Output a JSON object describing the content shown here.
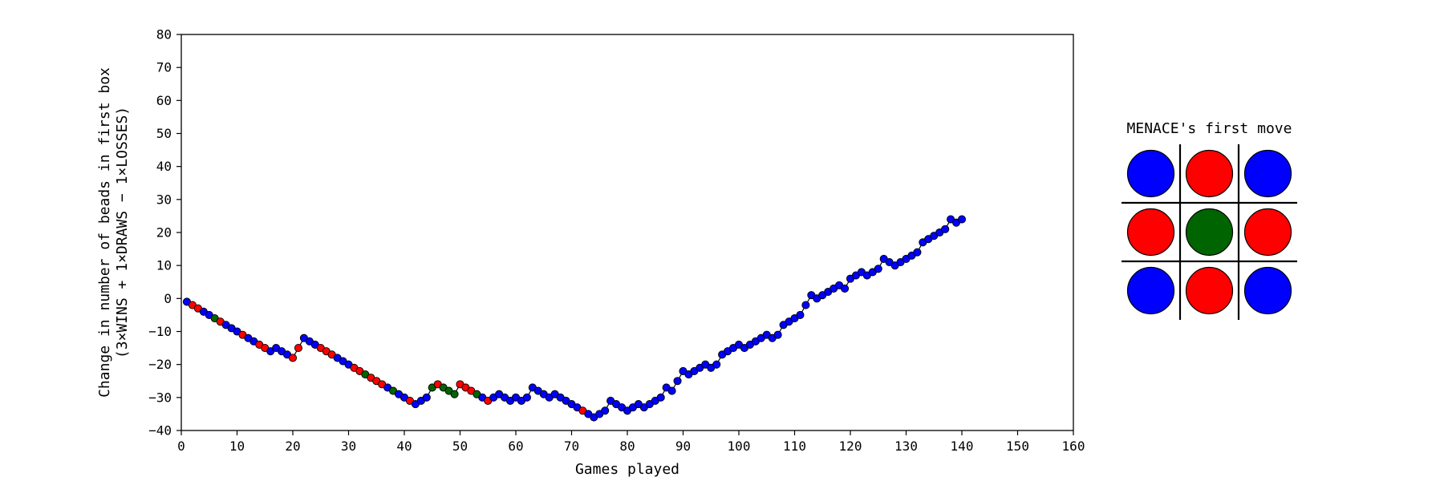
{
  "chart_data": {
    "type": "scatter",
    "xlabel": "Games played",
    "ylabel": "Change in number of beads in first box",
    "ylabel_line2": "(3×WINS + 1×DRAWS − 1×LOSSES)",
    "xlim": [
      0,
      160
    ],
    "ylim": [
      -40,
      80
    ],
    "xticks": [
      0,
      10,
      20,
      30,
      40,
      50,
      60,
      70,
      80,
      90,
      100,
      110,
      120,
      130,
      140,
      150,
      160
    ],
    "yticks": [
      -40,
      -30,
      -20,
      -10,
      0,
      10,
      20,
      30,
      40,
      50,
      60,
      70,
      80
    ],
    "grid": false,
    "line_color": "#000000",
    "colors": {
      "b": "#0000ff",
      "r": "#ff0000",
      "g": "#006400"
    },
    "color_names": {
      "b": "blue",
      "r": "red",
      "g": "green"
    },
    "points": [
      [
        1,
        -1,
        "b"
      ],
      [
        2,
        -2,
        "r"
      ],
      [
        3,
        -3,
        "r"
      ],
      [
        4,
        -4,
        "b"
      ],
      [
        5,
        -5,
        "b"
      ],
      [
        6,
        -6,
        "g"
      ],
      [
        7,
        -7,
        "r"
      ],
      [
        8,
        -8,
        "b"
      ],
      [
        9,
        -9,
        "b"
      ],
      [
        10,
        -10,
        "b"
      ],
      [
        11,
        -11,
        "r"
      ],
      [
        12,
        -12,
        "b"
      ],
      [
        13,
        -13,
        "b"
      ],
      [
        14,
        -14,
        "r"
      ],
      [
        15,
        -15,
        "r"
      ],
      [
        16,
        -16,
        "b"
      ],
      [
        17,
        -15,
        "b"
      ],
      [
        18,
        -16,
        "b"
      ],
      [
        19,
        -17,
        "b"
      ],
      [
        20,
        -18,
        "r"
      ],
      [
        21,
        -15,
        "r"
      ],
      [
        22,
        -12,
        "b"
      ],
      [
        23,
        -13,
        "b"
      ],
      [
        24,
        -14,
        "b"
      ],
      [
        25,
        -15,
        "r"
      ],
      [
        26,
        -16,
        "r"
      ],
      [
        27,
        -17,
        "r"
      ],
      [
        28,
        -18,
        "b"
      ],
      [
        29,
        -19,
        "b"
      ],
      [
        30,
        -20,
        "b"
      ],
      [
        31,
        -21,
        "r"
      ],
      [
        32,
        -22,
        "r"
      ],
      [
        33,
        -23,
        "g"
      ],
      [
        34,
        -24,
        "r"
      ],
      [
        35,
        -25,
        "r"
      ],
      [
        36,
        -26,
        "r"
      ],
      [
        37,
        -27,
        "b"
      ],
      [
        38,
        -28,
        "g"
      ],
      [
        39,
        -29,
        "b"
      ],
      [
        40,
        -30,
        "b"
      ],
      [
        41,
        -31,
        "r"
      ],
      [
        42,
        -32,
        "b"
      ],
      [
        43,
        -31,
        "b"
      ],
      [
        44,
        -30,
        "b"
      ],
      [
        45,
        -27,
        "g"
      ],
      [
        46,
        -26,
        "r"
      ],
      [
        47,
        -27,
        "g"
      ],
      [
        48,
        -28,
        "g"
      ],
      [
        49,
        -29,
        "g"
      ],
      [
        50,
        -26,
        "r"
      ],
      [
        51,
        -27,
        "r"
      ],
      [
        52,
        -28,
        "r"
      ],
      [
        53,
        -29,
        "g"
      ],
      [
        54,
        -30,
        "b"
      ],
      [
        55,
        -31,
        "r"
      ],
      [
        56,
        -30,
        "b"
      ],
      [
        57,
        -29,
        "b"
      ],
      [
        58,
        -30,
        "b"
      ],
      [
        59,
        -31,
        "b"
      ],
      [
        60,
        -30,
        "b"
      ],
      [
        61,
        -31,
        "b"
      ],
      [
        62,
        -30,
        "b"
      ],
      [
        63,
        -27,
        "b"
      ],
      [
        64,
        -28,
        "b"
      ],
      [
        65,
        -29,
        "b"
      ],
      [
        66,
        -30,
        "b"
      ],
      [
        67,
        -29,
        "b"
      ],
      [
        68,
        -30,
        "b"
      ],
      [
        69,
        -31,
        "b"
      ],
      [
        70,
        -32,
        "b"
      ],
      [
        71,
        -33,
        "b"
      ],
      [
        72,
        -34,
        "r"
      ],
      [
        73,
        -35,
        "b"
      ],
      [
        74,
        -36,
        "b"
      ],
      [
        75,
        -35,
        "b"
      ],
      [
        76,
        -34,
        "b"
      ],
      [
        77,
        -31,
        "b"
      ],
      [
        78,
        -32,
        "b"
      ],
      [
        79,
        -33,
        "b"
      ],
      [
        80,
        -34,
        "b"
      ],
      [
        81,
        -33,
        "b"
      ],
      [
        82,
        -32,
        "b"
      ],
      [
        83,
        -33,
        "b"
      ],
      [
        84,
        -32,
        "b"
      ],
      [
        85,
        -31,
        "b"
      ],
      [
        86,
        -30,
        "b"
      ],
      [
        87,
        -27,
        "b"
      ],
      [
        88,
        -28,
        "b"
      ],
      [
        89,
        -25,
        "b"
      ],
      [
        90,
        -22,
        "b"
      ],
      [
        91,
        -23,
        "b"
      ],
      [
        92,
        -22,
        "b"
      ],
      [
        93,
        -21,
        "b"
      ],
      [
        94,
        -20,
        "b"
      ],
      [
        95,
        -21,
        "b"
      ],
      [
        96,
        -20,
        "b"
      ],
      [
        97,
        -17,
        "b"
      ],
      [
        98,
        -16,
        "b"
      ],
      [
        99,
        -15,
        "b"
      ],
      [
        100,
        -14,
        "b"
      ],
      [
        101,
        -15,
        "b"
      ],
      [
        102,
        -14,
        "b"
      ],
      [
        103,
        -13,
        "b"
      ],
      [
        104,
        -12,
        "b"
      ],
      [
        105,
        -11,
        "b"
      ],
      [
        106,
        -12,
        "b"
      ],
      [
        107,
        -11,
        "b"
      ],
      [
        108,
        -8,
        "b"
      ],
      [
        109,
        -7,
        "b"
      ],
      [
        110,
        -6,
        "b"
      ],
      [
        111,
        -5,
        "b"
      ],
      [
        112,
        -2,
        "b"
      ],
      [
        113,
        1,
        "b"
      ],
      [
        114,
        0,
        "b"
      ],
      [
        115,
        1,
        "b"
      ],
      [
        116,
        2,
        "b"
      ],
      [
        117,
        3,
        "b"
      ],
      [
        118,
        4,
        "b"
      ],
      [
        119,
        3,
        "b"
      ],
      [
        120,
        6,
        "b"
      ],
      [
        121,
        7,
        "b"
      ],
      [
        122,
        8,
        "b"
      ],
      [
        123,
        7,
        "b"
      ],
      [
        124,
        8,
        "b"
      ],
      [
        125,
        9,
        "b"
      ],
      [
        126,
        12,
        "b"
      ],
      [
        127,
        11,
        "b"
      ],
      [
        128,
        10,
        "b"
      ],
      [
        129,
        11,
        "b"
      ],
      [
        130,
        12,
        "b"
      ],
      [
        131,
        13,
        "b"
      ],
      [
        132,
        14,
        "b"
      ],
      [
        133,
        17,
        "b"
      ],
      [
        134,
        18,
        "b"
      ],
      [
        135,
        19,
        "b"
      ],
      [
        136,
        20,
        "b"
      ],
      [
        137,
        21,
        "b"
      ],
      [
        138,
        24,
        "b"
      ],
      [
        139,
        23,
        "b"
      ],
      [
        140,
        24,
        "b"
      ]
    ]
  },
  "board": {
    "title": "MENACE's first move",
    "cells": [
      "#0000ff",
      "#ff0000",
      "#0000ff",
      "#ff0000",
      "#006400",
      "#ff0000",
      "#0000ff",
      "#ff0000",
      "#0000ff"
    ]
  }
}
